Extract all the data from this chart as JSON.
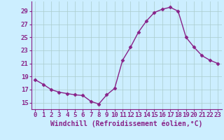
{
  "x": [
    0,
    1,
    2,
    3,
    4,
    5,
    6,
    7,
    8,
    9,
    10,
    11,
    12,
    13,
    14,
    15,
    16,
    17,
    18,
    19,
    20,
    21,
    22,
    23
  ],
  "y": [
    18.5,
    17.8,
    17.0,
    16.6,
    16.4,
    16.2,
    16.1,
    15.2,
    14.8,
    16.2,
    17.2,
    21.5,
    23.5,
    25.8,
    27.5,
    28.8,
    29.3,
    29.6,
    29.0,
    25.0,
    23.5,
    22.2,
    21.5,
    21.0
  ],
  "line_color": "#882288",
  "marker": "D",
  "marker_size": 2.5,
  "bg_color": "#cceeff",
  "grid_color": "#aacccc",
  "xlabel": "Windchill (Refroidissement éolien,°C)",
  "ylabel_ticks": [
    15,
    17,
    19,
    21,
    23,
    25,
    27,
    29
  ],
  "xlim": [
    -0.5,
    23.5
  ],
  "ylim": [
    14.0,
    30.5
  ],
  "xticks": [
    0,
    1,
    2,
    3,
    4,
    5,
    6,
    7,
    8,
    9,
    10,
    11,
    12,
    13,
    14,
    15,
    16,
    17,
    18,
    19,
    20,
    21,
    22,
    23
  ],
  "xlabel_fontsize": 7.0,
  "tick_fontsize": 6.5,
  "line_width": 1.0
}
